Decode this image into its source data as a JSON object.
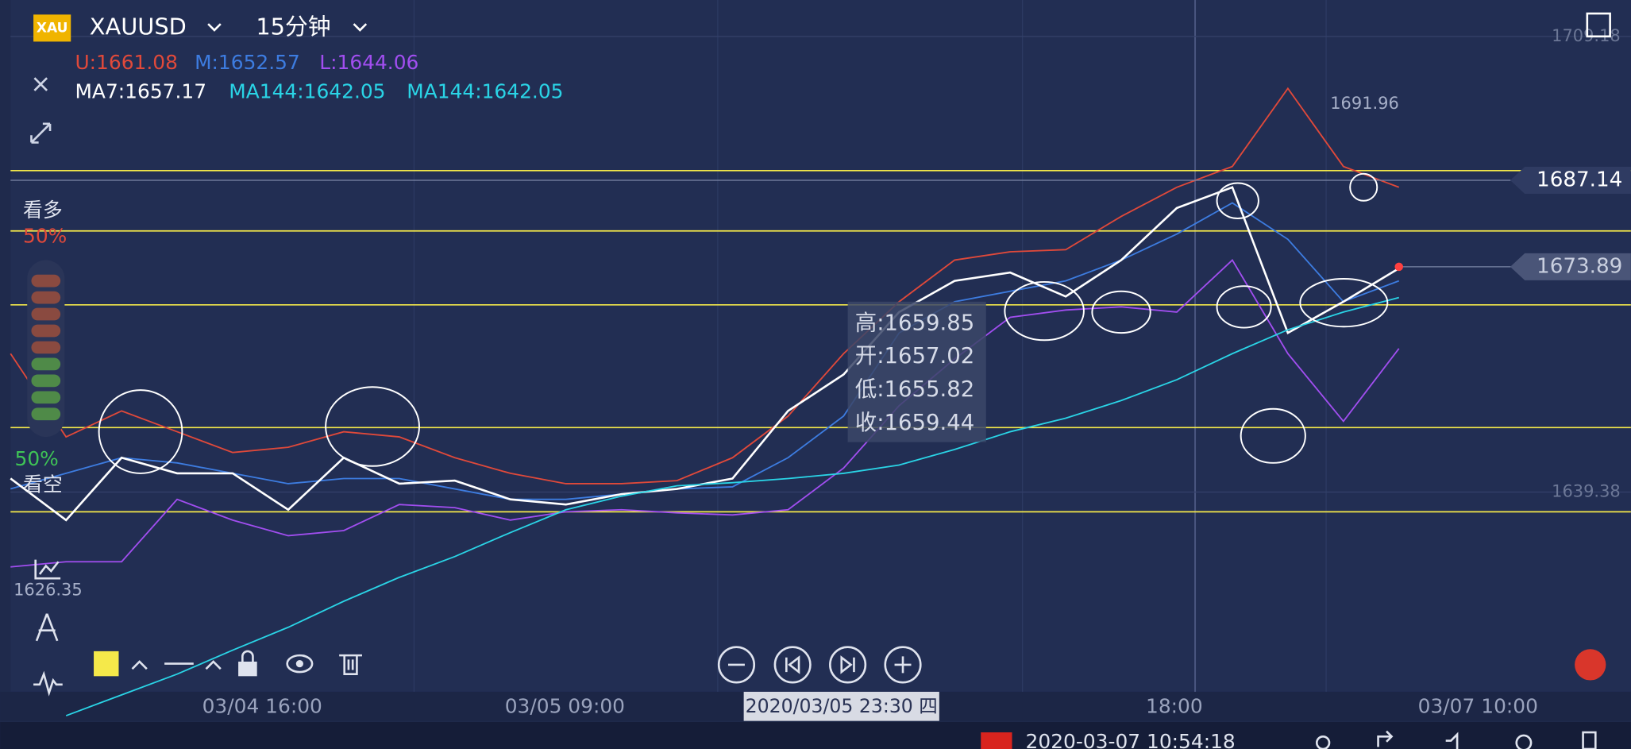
{
  "header": {
    "badge": "XAU",
    "symbol": "XAUUSD",
    "interval": "15分钟"
  },
  "indicators": {
    "boll": [
      "U:1661.08",
      "M:1652.57",
      "L:1644.06"
    ],
    "ma": [
      "MA7:1657.17",
      "MA144:1642.05",
      "MA144:1642.05"
    ]
  },
  "sentiment": {
    "bull_label": "看多",
    "bull_pct": "50%",
    "bear_pct": "50%",
    "bear_label": "看空"
  },
  "tooltip": [
    "高:1659.85",
    "开:1657.02",
    "低:1655.82",
    "收:1659.44"
  ],
  "crosshair_time": "2020/03/05 23:30 四",
  "status_time": "2020-03-07 10:54:18",
  "chart_data": {
    "type": "line",
    "ylim": [
      1604.0,
      1714.76
    ],
    "yticks": [
      1709.18,
      1639.38
    ],
    "price_tags": [
      1687.14,
      1673.89
    ],
    "high_label": 1691.96,
    "low_label": 1626.35,
    "horizontal_lines": [
      1688.62,
      1679.38,
      1668.06,
      1649.26,
      1636.35
    ],
    "line_color": "#f5e94a",
    "x_labels": [
      "03/04 16:00",
      "03/05 09:00",
      "18:00",
      "03/07 10:00"
    ],
    "series": [
      {
        "name": "U",
        "color": "#e0493a",
        "values": [
          1660.58,
          1647.83,
          1651.81,
          1648.62,
          1645.44,
          1646.24,
          1648.62,
          1647.83,
          1644.64,
          1642.25,
          1640.66,
          1640.66,
          1641.13,
          1644.64,
          1651.01,
          1660.58,
          1668.54,
          1674.92,
          1676.19,
          1676.51,
          1681.61,
          1686.07,
          1689.26,
          1701.21,
          1689.26,
          1686.07
        ]
      },
      {
        "name": "M",
        "color": "#3d7ce0",
        "values": [
          1639.86,
          1642.25,
          1644.64,
          1643.84,
          1642.25,
          1640.66,
          1641.45,
          1641.45,
          1639.86,
          1638.26,
          1638.26,
          1639.06,
          1639.86,
          1640.18,
          1644.64,
          1651.01,
          1663.76,
          1668.54,
          1670.14,
          1671.73,
          1674.92,
          1678.9,
          1683.68,
          1678.1,
          1668.54,
          1671.73
        ]
      },
      {
        "name": "L",
        "color": "#a14ef0",
        "values": [
          1627.91,
          1628.7,
          1628.7,
          1638.26,
          1635.08,
          1632.69,
          1633.48,
          1637.47,
          1636.99,
          1635.08,
          1636.35,
          1636.67,
          1636.19,
          1635.87,
          1636.67,
          1643.05,
          1652.61,
          1659.78,
          1666.15,
          1667.27,
          1667.75,
          1666.95,
          1674.92,
          1660.58,
          1650.22,
          1661.37
        ]
      },
      {
        "name": "MA7",
        "color": "#ffffff",
        "values": [
          1641.45,
          1635.08,
          1644.64,
          1642.25,
          1642.25,
          1636.67,
          1644.64,
          1640.66,
          1641.13,
          1638.26,
          1637.47,
          1639.06,
          1639.86,
          1641.45,
          1651.81,
          1657.39,
          1666.95,
          1671.73,
          1673.01,
          1669.34,
          1674.92,
          1682.89,
          1686.07,
          1663.76,
          1668.54,
          1673.64
        ]
      },
      {
        "name": "MA144",
        "color": "#2ad4e6",
        "values": [
          null,
          1605.12,
          1608.31,
          1611.49,
          1615.16,
          1618.66,
          1622.65,
          1626.31,
          1629.5,
          1633.17,
          1636.67,
          1638.75,
          1640.34,
          1640.82,
          1641.45,
          1642.25,
          1643.52,
          1645.91,
          1648.62,
          1650.69,
          1653.4,
          1656.59,
          1660.58,
          1664.24,
          1666.95,
          1669.18
        ]
      }
    ]
  }
}
